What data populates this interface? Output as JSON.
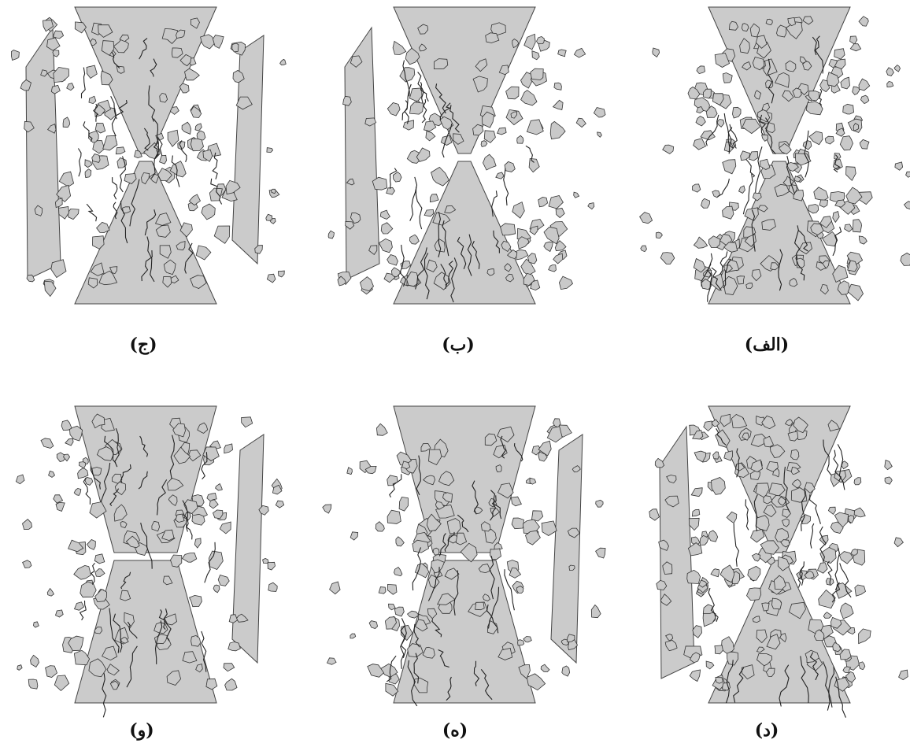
{
  "figure": {
    "panels": [
      {
        "id": "alef",
        "caption": "(الف)",
        "pattern": "dense-fragmentation"
      },
      {
        "id": "be",
        "caption": "(ب)",
        "pattern": "hourglass-left-remnant"
      },
      {
        "id": "jim",
        "caption": "(ج)",
        "pattern": "hourglass-both-remnants"
      },
      {
        "id": "dal",
        "caption": "(د)",
        "pattern": "dense-fragmentation-left-remnant"
      },
      {
        "id": "he",
        "caption": "(ه)",
        "pattern": "axial-splitting"
      },
      {
        "id": "vav",
        "caption": "(و)",
        "pattern": "axial-splitting-fragments"
      }
    ]
  }
}
